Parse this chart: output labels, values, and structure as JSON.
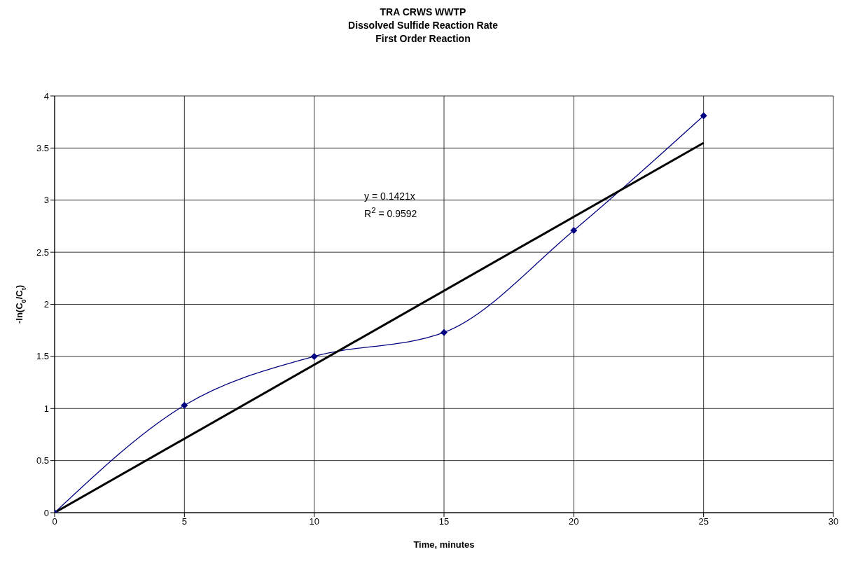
{
  "chart_data": {
    "type": "line",
    "title": "TRA CRWS WWTP\nDissolved Sulfide Reaction Rate\nFirst Order Reaction",
    "xlabel": "Time, minutes",
    "ylabel": "-ln(C$_{0}$/C$_{t}$)",
    "x": [
      0,
      5,
      10,
      15,
      20,
      25
    ],
    "series": [
      {
        "color": "#000080",
        "marker": "diamond",
        "values": [
          0,
          1.03,
          1.5,
          1.73,
          2.71,
          3.81
        ]
      },
      {
        "color": "#000000",
        "marker": "none",
        "x": [
          0,
          25
        ],
        "values": [
          0,
          3.55
        ]
      }
    ],
    "xlim": [
      0,
      30
    ],
    "xticks": [
      0,
      5,
      10,
      15,
      20,
      25,
      30
    ],
    "ylim": [
      0,
      4
    ],
    "yticks": [
      0,
      0.5,
      1,
      1.5,
      2,
      2.5,
      3,
      3.5,
      4
    ],
    "grid": true,
    "annotations": [
      "y = 0.1421x",
      "R$^{2}$ = 0.9592"
    ]
  }
}
